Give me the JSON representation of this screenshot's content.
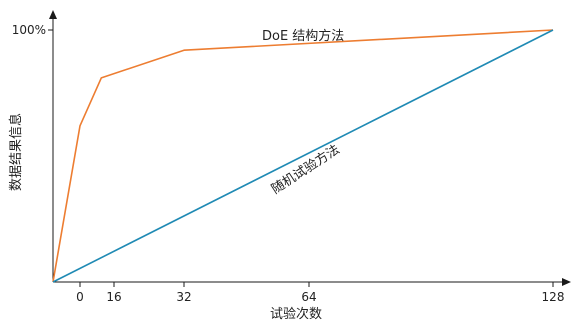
{
  "chart_data": {
    "type": "line",
    "title": "",
    "xlabel": "试验次数",
    "ylabel": "数据结果信息",
    "x_ticks": [
      "0",
      "16",
      "32",
      "64",
      "128"
    ],
    "y_ticks": [
      "100%"
    ],
    "series": [
      {
        "name": "DoE 结构方法",
        "color": "#ed7d31",
        "points": [
          [
            -10,
            0
          ],
          [
            0,
            62
          ],
          [
            10,
            81
          ],
          [
            32,
            92
          ],
          [
            128,
            100
          ]
        ]
      },
      {
        "name": "随机试验方法",
        "color": "#1f8ab4",
        "points": [
          [
            -10,
            0
          ],
          [
            128,
            100
          ]
        ]
      }
    ]
  }
}
